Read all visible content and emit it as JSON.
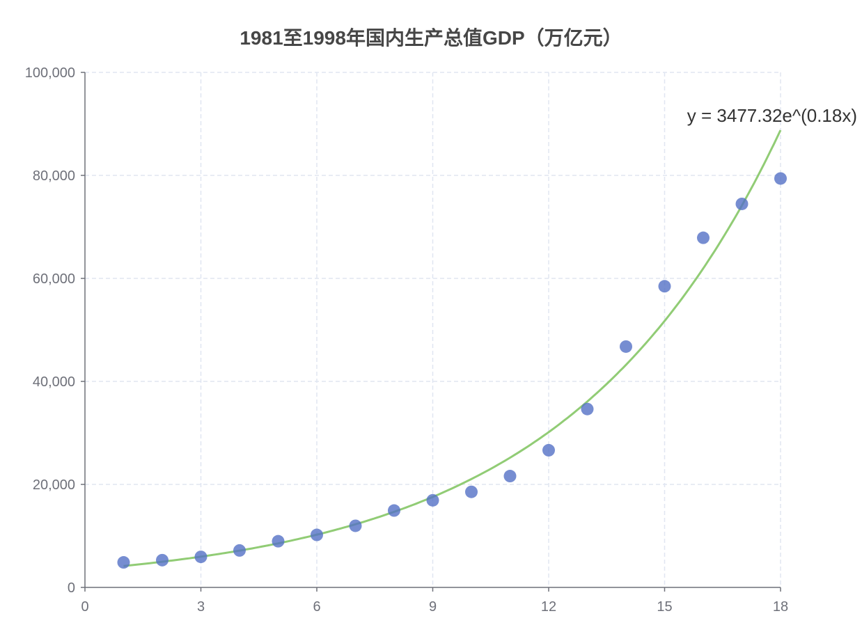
{
  "chart_data": {
    "type": "scatter",
    "title": "1981至1998年国内生产总值GDP（万亿元）",
    "xlabel": "",
    "ylabel": "",
    "xlim": [
      0,
      18
    ],
    "ylim": [
      0,
      100000
    ],
    "x_ticks": [
      "0",
      "3",
      "6",
      "9",
      "12",
      "15",
      "18"
    ],
    "y_ticks": [
      "0",
      "20,000",
      "40,000",
      "60,000",
      "80,000",
      "100,000"
    ],
    "grid": true,
    "points": [
      [
        1,
        4862.4
      ],
      [
        2,
        5294.7
      ],
      [
        3,
        5934.5
      ],
      [
        4,
        7171.0
      ],
      [
        5,
        8964.4
      ],
      [
        6,
        10202.2
      ],
      [
        7,
        11962.5
      ],
      [
        8,
        14928.3
      ],
      [
        9,
        16909.2
      ],
      [
        10,
        18547.9
      ],
      [
        11,
        21617.8
      ],
      [
        12,
        26638.1
      ],
      [
        13,
        34634.4
      ],
      [
        14,
        46759.4
      ],
      [
        15,
        58478.1
      ],
      [
        16,
        67884.6
      ],
      [
        17,
        74462.6
      ],
      [
        18,
        79395.7
      ]
    ],
    "regression": {
      "type": "exponential",
      "a": 3477.32,
      "b": 0.18,
      "label": "y = 3477.32e^(0.18x)"
    },
    "colors": {
      "points": "#5470c6",
      "line": "#91cc75",
      "axis": "#6e7079",
      "grid": "#e0e6f1",
      "title": "#464646"
    }
  }
}
